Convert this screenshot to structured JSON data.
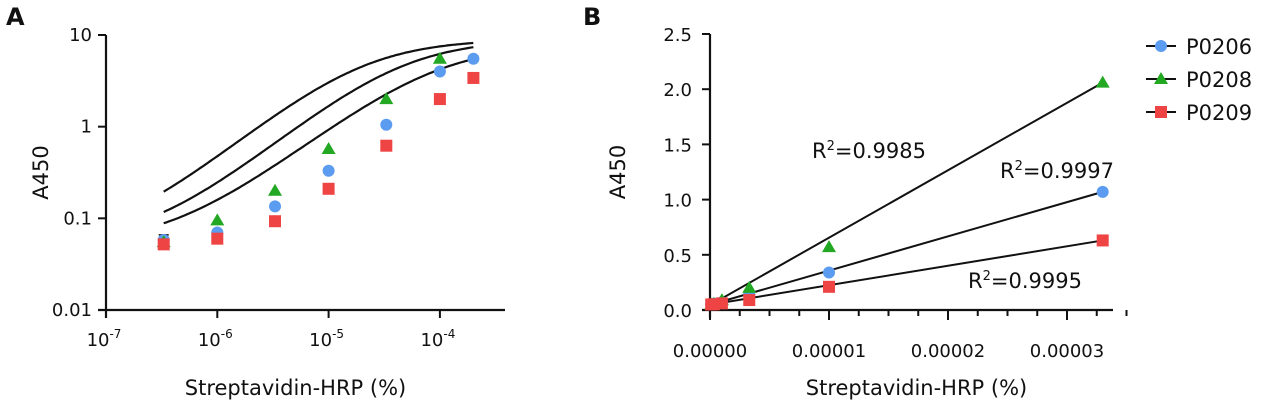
{
  "chart_data": [
    {
      "panel": "A",
      "type": "line",
      "xscale": "log",
      "yscale": "log",
      "xlabel": "Streptavidin-HRP (%)",
      "ylabel": "A450",
      "xlim": [
        1e-07,
        0.0003
      ],
      "ylim": [
        0.01,
        10
      ],
      "xticks": [
        1e-07,
        1e-06,
        1e-05,
        0.0001
      ],
      "xtick_labels": [
        {
          "base": "10",
          "exp": "-7"
        },
        {
          "base": "10",
          "exp": "-6"
        },
        {
          "base": "10",
          "exp": "-5"
        },
        {
          "base": "10",
          "exp": "-4"
        }
      ],
      "yticks": [
        0.01,
        0.1,
        1,
        10
      ],
      "ytick_labels": [
        "0.01",
        "0.1",
        "1",
        "10"
      ],
      "grid": false,
      "fit": "sigmoidal curves",
      "series": [
        {
          "name": "P0206",
          "color": "#5b9bf0",
          "marker": "circle",
          "x": [
            3.3e-07,
            1e-06,
            3.3e-06,
            1e-05,
            3.3e-05,
            0.0001,
            0.0002
          ],
          "values": [
            0.058,
            0.07,
            0.135,
            0.33,
            1.05,
            4.0,
            5.5
          ]
        },
        {
          "name": "P0208",
          "color": "#22a822",
          "marker": "triangle",
          "x": [
            3.3e-07,
            1e-06,
            3.3e-06,
            1e-05,
            3.3e-05,
            0.0001
          ],
          "values": [
            0.055,
            0.095,
            0.2,
            0.57,
            2.0,
            5.5
          ]
        },
        {
          "name": "P0209",
          "color": "#ee4444",
          "marker": "square",
          "x": [
            3.3e-07,
            1e-06,
            3.3e-06,
            1e-05,
            3.3e-05,
            0.0001,
            0.0002
          ],
          "values": [
            0.052,
            0.06,
            0.093,
            0.21,
            0.62,
            2.0,
            3.4
          ]
        }
      ]
    },
    {
      "panel": "B",
      "type": "scatter",
      "xlabel": "Streptavidin-HRP (%)",
      "ylabel": "A450",
      "xlim": [
        0,
        3.5e-05
      ],
      "ylim": [
        0,
        2.5
      ],
      "xticks": [
        0,
        1e-05,
        2e-05,
        3e-05
      ],
      "xtick_labels": [
        "0.00000",
        "0.00001",
        "0.00002",
        "0.00003"
      ],
      "yticks": [
        0,
        0.5,
        1.0,
        1.5,
        2.0,
        2.5
      ],
      "ytick_labels": [
        "0.0",
        "0.5",
        "1.0",
        "1.5",
        "2.0",
        "2.5"
      ],
      "grid": false,
      "fit": "linear regression",
      "legend": {
        "position": "top-right",
        "entries": [
          "P0206",
          "P0208",
          "P0209"
        ]
      },
      "series": [
        {
          "name": "P0206",
          "color": "#5b9bf0",
          "marker": "circle",
          "x": [
            1e-07,
            3.3e-07,
            1e-06,
            3.3e-06,
            1e-05,
            3.3e-05
          ],
          "values": [
            0.05,
            0.058,
            0.07,
            0.14,
            0.34,
            1.07
          ],
          "r2_label": "R²=0.9997"
        },
        {
          "name": "P0208",
          "color": "#22a822",
          "marker": "triangle",
          "x": [
            1e-07,
            3.3e-07,
            1e-06,
            3.3e-06,
            1e-05,
            3.3e-05
          ],
          "values": [
            0.05,
            0.055,
            0.09,
            0.2,
            0.57,
            2.06
          ],
          "r2_label": "R²=0.9985"
        },
        {
          "name": "P0209",
          "color": "#ee4444",
          "marker": "square",
          "x": [
            1e-07,
            3.3e-07,
            1e-06,
            3.3e-06,
            1e-05,
            3.3e-05
          ],
          "values": [
            0.05,
            0.052,
            0.06,
            0.09,
            0.21,
            0.63
          ],
          "r2_label": "R²=0.9995"
        }
      ]
    }
  ],
  "labels": {
    "panel_a": "A",
    "panel_b": "B",
    "r2_prefix": "R",
    "r2_sup": "2"
  }
}
